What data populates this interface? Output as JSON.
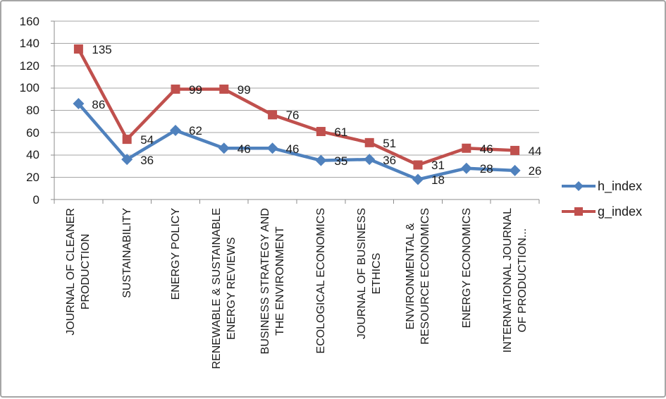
{
  "chart_data": {
    "type": "line",
    "title": "",
    "xlabel": "",
    "ylabel": "",
    "ylim": [
      0,
      160
    ],
    "yticks": [
      0,
      20,
      40,
      60,
      80,
      100,
      120,
      140,
      160
    ],
    "grid": true,
    "data_labels": true,
    "legend_position": "right",
    "categories": [
      {
        "lines": [
          "JOURNAL OF CLEANER",
          "PRODUCTION"
        ]
      },
      {
        "lines": [
          "SUSTAINABILITY"
        ]
      },
      {
        "lines": [
          "ENERGY POLICY"
        ]
      },
      {
        "lines": [
          "RENEWABLE & SUSTAINABLE",
          "ENERGY REVIEWS"
        ]
      },
      {
        "lines": [
          "BUSINESS STRATEGY AND",
          "THE ENVIRONMENT"
        ]
      },
      {
        "lines": [
          "ECOLOGICAL ECONOMICS"
        ]
      },
      {
        "lines": [
          "JOURNAL OF BUSINESS",
          "ETHICS"
        ]
      },
      {
        "lines": [
          "ENVIRONMENTAL &",
          "RESOURCE ECONOMICS"
        ]
      },
      {
        "lines": [
          "ENERGY ECONOMICS"
        ]
      },
      {
        "lines": [
          "INTERNATIONAL JOURNAL",
          "OF PRODUCTION..."
        ]
      }
    ],
    "series": [
      {
        "name": "h_index",
        "marker": "diamond",
        "color": "#4F81BD",
        "values": [
          86,
          36,
          62,
          46,
          46,
          35,
          36,
          18,
          28,
          26
        ]
      },
      {
        "name": "g_index",
        "marker": "square",
        "color": "#C0504D",
        "values": [
          135,
          54,
          99,
          99,
          76,
          61,
          51,
          31,
          46,
          44
        ]
      }
    ],
    "colors": {
      "gridline": "#A6A6A6",
      "axis": "#8E8E8E",
      "text": "#1A1A1A",
      "frame_border": "#A6A6A6",
      "background": "#FFFFFF"
    }
  }
}
